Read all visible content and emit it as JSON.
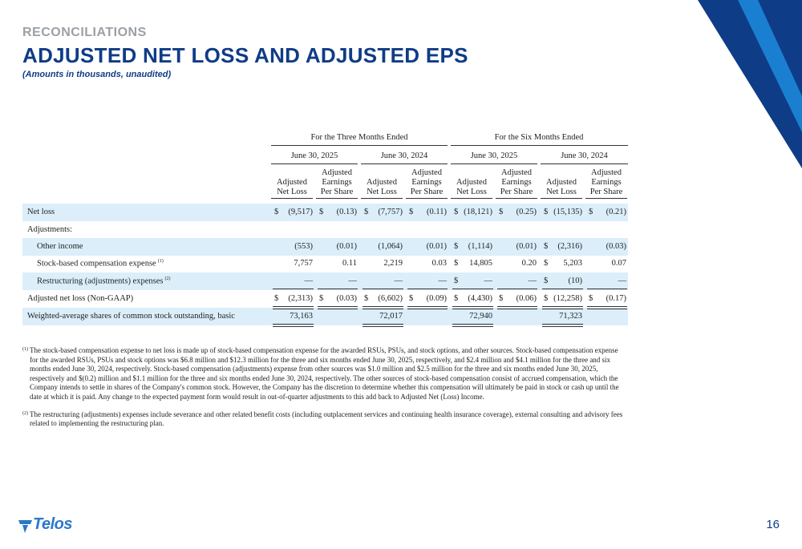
{
  "header": {
    "kicker": "RECONCILIATIONS",
    "title": "ADJUSTED NET LOSS AND ADJUSTED EPS",
    "subtitle": "(Amounts in thousands, unaudited)"
  },
  "table": {
    "groups": [
      "For the Three Months Ended",
      "For the Six Months Ended"
    ],
    "periods": [
      "June 30, 2025",
      "June 30, 2024",
      "June 30, 2025",
      "June 30, 2024"
    ],
    "col_headers": [
      [
        "Adjusted",
        "Net Loss"
      ],
      [
        "Adjusted",
        "Earnings",
        "Per Share"
      ],
      [
        "Adjusted",
        "Net Loss"
      ],
      [
        "Adjusted",
        "Earnings",
        "Per Share"
      ],
      [
        "Adjusted",
        "Net Loss"
      ],
      [
        "Adjusted",
        "Earnings",
        "Per Share"
      ],
      [
        "Adjusted",
        "Net Loss"
      ],
      [
        "Adjusted",
        "Earnings",
        "Per Share"
      ]
    ],
    "currency_symbol": "$",
    "rows": [
      {
        "label": "Net loss",
        "values": [
          "(9,517)",
          "(0.13)",
          "(7,757)",
          "(0.11)",
          "(18,121)",
          "(0.25)",
          "(15,135)",
          "(0.21)"
        ]
      },
      {
        "label": "Adjustments:",
        "values": []
      },
      {
        "label": "Other income",
        "values": [
          "(553)",
          "(0.01)",
          "(1,064)",
          "(0.01)",
          "(1,114)",
          "(0.01)",
          "(2,316)",
          "(0.03)"
        ]
      },
      {
        "label": "Stock-based compensation expense",
        "sup": "(1)",
        "values": [
          "7,757",
          "0.11",
          "2,219",
          "0.03",
          "14,805",
          "0.20",
          "5,203",
          "0.07"
        ]
      },
      {
        "label": "Restructuring (adjustments) expenses",
        "sup": "(2)",
        "values": [
          "—",
          "—",
          "—",
          "—",
          "—",
          "—",
          "(10)",
          "—"
        ]
      },
      {
        "label": "Adjusted net loss (Non-GAAP)",
        "values": [
          "(2,313)",
          "(0.03)",
          "(6,602)",
          "(0.09)",
          "(4,430)",
          "(0.06)",
          "(12,258)",
          "(0.17)"
        ]
      },
      {
        "label": "Weighted-average shares of common stock outstanding, basic",
        "values": [
          "73,163",
          "",
          "72,017",
          "",
          "72,940",
          "",
          "71,323",
          ""
        ]
      }
    ]
  },
  "footnotes": [
    {
      "marker": "(1)",
      "text": "The stock-based compensation expense to net loss is made up of stock-based compensation expense for the awarded RSUs, PSUs, and stock options, and other sources. Stock-based compensation expense for the awarded RSUs, PSUs and stock options was $6.8 million and $12.3 million for the three and six months ended June 30, 2025, respectively, and $2.4 million and $4.1 million for the three and six months ended June 30, 2024, respectively. Stock-based compensation (adjustments) expense from other sources was $1.0 million and $2.5 million for the three and six months ended June 30, 2025, respectively and $(0.2) million and $1.1 million for the three and six months ended June 30, 2024, respectively. The other sources of stock-based compensation consist of accrued compensation, which the Company intends to settle in shares of the Company's common stock. However, the Company has the discretion to determine whether this compensation will ultimately be paid in stock or cash up until the date at which it is paid. Any change to the expected payment form would result in out-of-quarter adjustments to this add back to Adjusted Net (Loss) Income."
    },
    {
      "marker": "(2)",
      "text": "The restructuring (adjustments) expenses include severance and other related benefit costs (including outplacement services and continuing health insurance coverage), external consulting and advisory fees related to implementing the restructuring plan."
    }
  ],
  "footer": {
    "logo_text": "Telos",
    "page_number": "16"
  },
  "colors": {
    "navy": "#0f3c86",
    "gray": "#9ba0a6",
    "row_shade": "#dbeefa",
    "accent_blue": "#2a78c9"
  }
}
